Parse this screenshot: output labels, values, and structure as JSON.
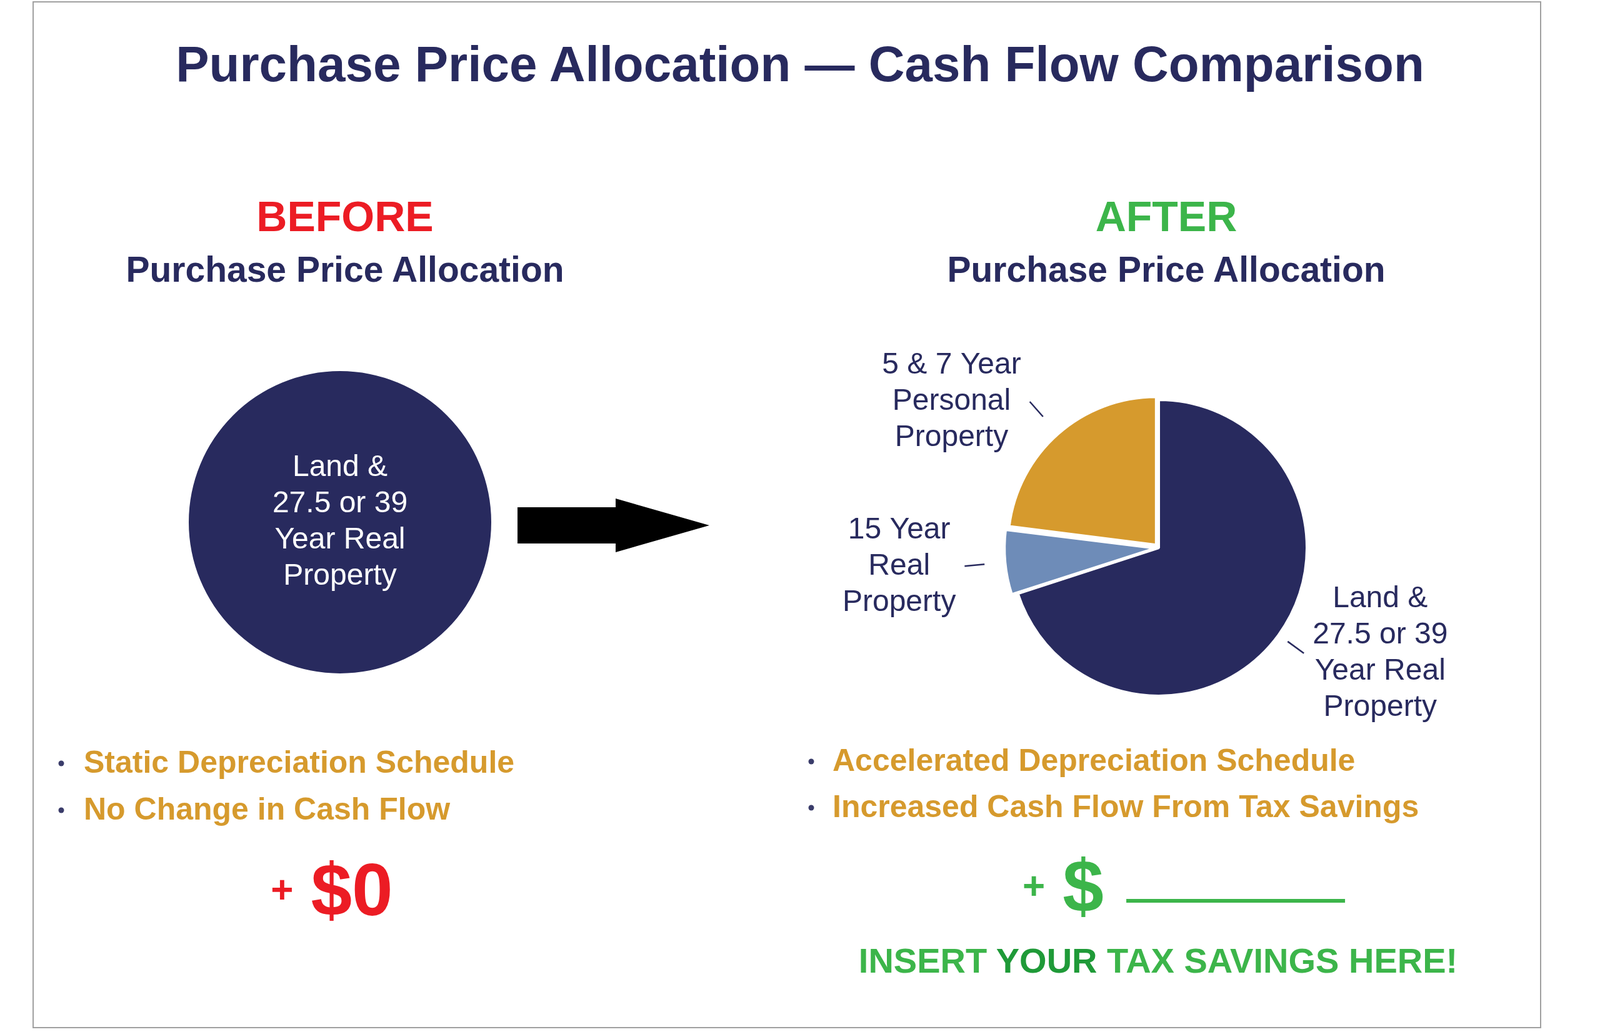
{
  "title": "Purchase Price Allocation — Cash Flow Comparison",
  "chart_data": [
    {
      "type": "pie",
      "title": "BEFORE",
      "subtitle": "Purchase Price Allocation",
      "categories": [
        "Land &\n27.5 or 39\nYear Real\nProperty"
      ],
      "values": [
        100
      ],
      "colors": [
        "#282a5e"
      ],
      "annotations": [
        "Static Depreciation Schedule",
        "No Change in Cash Flow"
      ],
      "result": {
        "prefix": "+",
        "amount": "$0"
      }
    },
    {
      "type": "pie",
      "title": "AFTER",
      "subtitle": "Purchase Price Allocation",
      "categories": [
        "Land &\n27.5 or 39\nYear Real\nProperty",
        "15 Year\nReal\nProperty",
        "5 & 7 Year\nPersonal\nProperty"
      ],
      "values": [
        70,
        7,
        23
      ],
      "colors": [
        "#282a5e",
        "#6e8cb8",
        "#d69a2d"
      ],
      "annotations": [
        "Accelerated Depreciation Schedule",
        "Increased Cash Flow From Tax Savings"
      ],
      "result": {
        "prefix": "+",
        "amount": "$"
      },
      "note": {
        "before": "INSERT ",
        "emphasis": "YOUR",
        "after": " TAX SAVINGS HERE!"
      }
    }
  ]
}
